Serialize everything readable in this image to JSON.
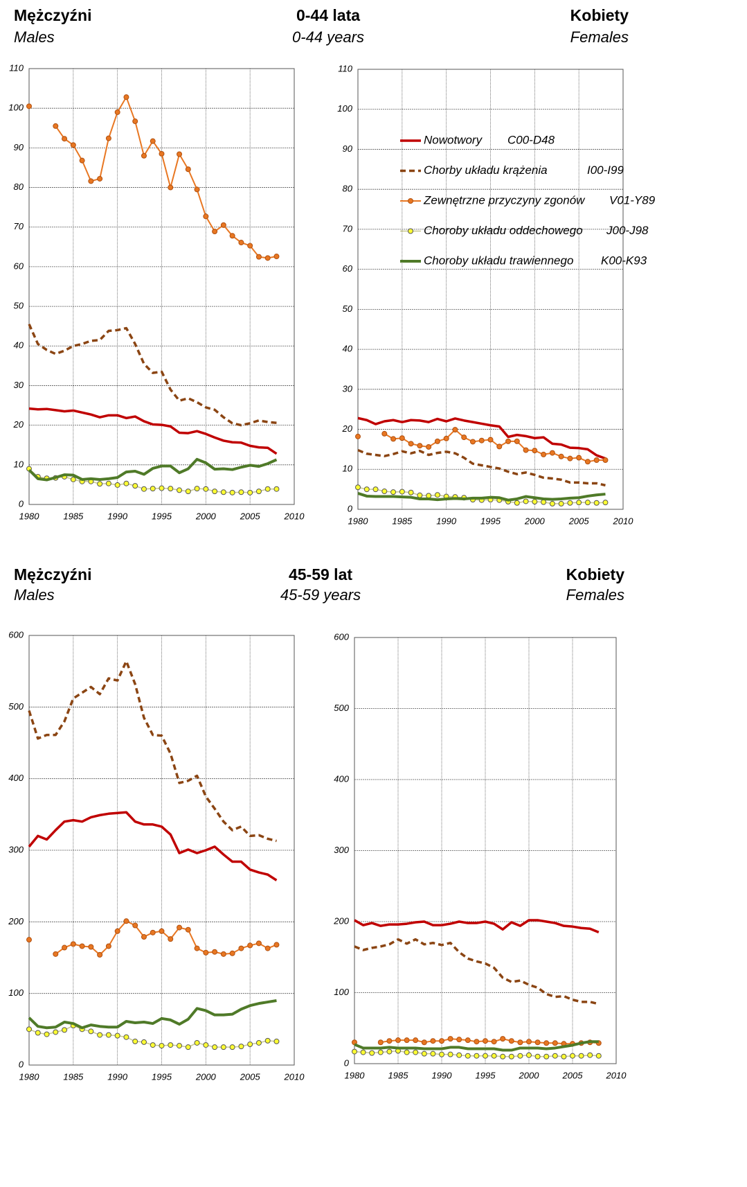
{
  "sections": [
    {
      "left_title": "Mężczyźni",
      "left_subtitle": "Males",
      "center_title": "0-44 lata",
      "center_subtitle": "0-44 years",
      "right_title": "Kobiety",
      "right_subtitle": "Females"
    },
    {
      "left_title": "Mężczyźni",
      "left_subtitle": "Males",
      "center_title": "45-59 lat",
      "center_subtitle": "45-59 years",
      "right_title": "Kobiety",
      "right_subtitle": "Females"
    }
  ],
  "chart_data": [
    {
      "type": "line",
      "grid": true,
      "x": [
        1980,
        1981,
        1982,
        1983,
        1984,
        1985,
        1986,
        1987,
        1988,
        1989,
        1990,
        1991,
        1992,
        1993,
        1994,
        1995,
        1996,
        1997,
        1998,
        1999,
        2000,
        2001,
        2002,
        2003,
        2004,
        2005,
        2006,
        2007,
        2008
      ],
      "xlim": [
        1980,
        2010
      ],
      "xticks": [
        1980,
        1985,
        1990,
        1995,
        2000,
        2005,
        2010
      ],
      "ylim": [
        0,
        110
      ],
      "yticks": [
        0,
        10,
        20,
        30,
        40,
        50,
        60,
        70,
        80,
        90,
        100,
        110
      ],
      "series": [
        {
          "color": "#c00000",
          "values": [
            24.2,
            24,
            24.1,
            23.8,
            23.5,
            23.7,
            23.2,
            22.7,
            22,
            22.5,
            22.5,
            21.8,
            22.2,
            21,
            20.2,
            20.1,
            19.7,
            18.1,
            18,
            18.5,
            17.8,
            16.9,
            16.1,
            15.7,
            15.6,
            14.8,
            14.4,
            14.3,
            12.8
          ]
        },
        {
          "color": "#8b4513",
          "dashed": true,
          "values": [
            45.5,
            40.5,
            39,
            38,
            38.8,
            40,
            40.5,
            41.3,
            41.5,
            43.8,
            44,
            44.5,
            40.5,
            35.5,
            33.2,
            33.5,
            29,
            26.2,
            26.8,
            25.8,
            24.5,
            23.9,
            22,
            20.5,
            20,
            20.5,
            21.2,
            20.8,
            20.6
          ]
        },
        {
          "color": "#e87722",
          "marker": true,
          "values": [
            100.5,
            null,
            null,
            95.5,
            92.3,
            90.7,
            86.8,
            81.6,
            82.2,
            92.4,
            99,
            102.8,
            96.7,
            88,
            91.7,
            88.5,
            80,
            88.4,
            84.6,
            79.5,
            72.7,
            68.9,
            70.5,
            67.8,
            66.1,
            65.3,
            62.5,
            62.2,
            62.6
          ]
        },
        {
          "color": "#ffff33",
          "marker": true,
          "values": [
            9,
            7,
            6.6,
            6.7,
            7,
            6.3,
            5.8,
            5.8,
            5.2,
            5.3,
            4.9,
            5.3,
            4.7,
            3.9,
            4,
            4.1,
            4,
            3.6,
            3.3,
            4,
            3.9,
            3.3,
            3.1,
            3,
            3.1,
            3,
            3.3,
            3.9,
            3.9
          ]
        },
        {
          "color": "#4f7a28",
          "values": [
            8.7,
            6.5,
            6.2,
            6.8,
            7.5,
            7.4,
            6.3,
            6.5,
            6.3,
            6.5,
            6.8,
            8.2,
            8.4,
            7.6,
            9.1,
            9.7,
            9.7,
            8,
            9,
            11.4,
            10.5,
            8.9,
            9,
            8.8,
            9.4,
            9.9,
            9.6,
            10.3,
            11.3
          ]
        }
      ]
    },
    {
      "type": "line",
      "grid": true,
      "legend": true,
      "x": [
        1980,
        1981,
        1982,
        1983,
        1984,
        1985,
        1986,
        1987,
        1988,
        1989,
        1990,
        1991,
        1992,
        1993,
        1994,
        1995,
        1996,
        1997,
        1998,
        1999,
        2000,
        2001,
        2002,
        2003,
        2004,
        2005,
        2006,
        2007,
        2008
      ],
      "xlim": [
        1980,
        2010
      ],
      "xticks": [
        1980,
        1985,
        1990,
        1995,
        2000,
        2005,
        2010
      ],
      "ylim": [
        0,
        110
      ],
      "yticks": [
        0,
        10,
        20,
        30,
        40,
        50,
        60,
        70,
        80,
        90,
        100,
        110
      ],
      "series": [
        {
          "name": "Nowotwory",
          "code": "C00-D48",
          "color": "#c00000",
          "values": [
            22.8,
            22.3,
            21.3,
            22,
            22.3,
            21.8,
            22.3,
            22.2,
            21.8,
            22.6,
            22,
            22.7,
            22.2,
            21.8,
            21.4,
            21,
            20.7,
            18.1,
            18.6,
            18.3,
            17.8,
            18,
            16.4,
            16.2,
            15.4,
            15.3,
            15,
            13.5,
            12.7
          ]
        },
        {
          "name": "Chorby układu krążenia",
          "code": "I00-I99",
          "color": "#8b4513",
          "dashed": true,
          "values": [
            14.8,
            13.9,
            13.6,
            13.3,
            13.8,
            14.5,
            14,
            14.6,
            13.6,
            14.1,
            14.4,
            14,
            12.9,
            11.4,
            11,
            10.6,
            10.2,
            9.4,
            8.8,
            9.2,
            8.6,
            7.9,
            7.7,
            7.4,
            6.7,
            6.7,
            6.5,
            6.5,
            6
          ]
        },
        {
          "name": "Zewnętrzne przyczyny zgonów",
          "code": "V01-Y89",
          "color": "#e87722",
          "marker": true,
          "values": [
            18.2,
            null,
            null,
            18.9,
            17.6,
            17.8,
            16.4,
            15.9,
            15.6,
            17,
            17.7,
            19.9,
            18,
            16.9,
            17.2,
            17.4,
            15.7,
            17,
            17,
            14.8,
            14.7,
            13.7,
            14.1,
            13.2,
            12.7,
            12.9,
            11.9,
            12.3,
            12.3
          ]
        },
        {
          "name": "Choroby układu oddechowego",
          "code": "J00-J98",
          "color": "#ffff33",
          "marker": true,
          "values": [
            5.5,
            5,
            5,
            4.5,
            4.3,
            4.4,
            4.2,
            3.5,
            3.4,
            3.6,
            3.2,
            3.1,
            2.9,
            2.4,
            2.3,
            2.4,
            2.3,
            1.9,
            1.6,
            2,
            1.9,
            1.8,
            1.4,
            1.4,
            1.6,
            1.7,
            1.7,
            1.6,
            1.7
          ]
        },
        {
          "name": "Choroby układu trawiennego",
          "code": "K00-K93",
          "color": "#4f7a28",
          "values": [
            4,
            3.3,
            3.2,
            3.2,
            3.2,
            3.1,
            3,
            2.6,
            2.6,
            2.4,
            2.6,
            2.7,
            2.6,
            2.8,
            2.8,
            3,
            2.9,
            2.3,
            2.6,
            3.2,
            2.9,
            2.6,
            2.5,
            2.6,
            2.8,
            2.9,
            3.3,
            3.6,
            3.8
          ]
        }
      ]
    },
    {
      "type": "line",
      "grid": true,
      "x": [
        1980,
        1981,
        1982,
        1983,
        1984,
        1985,
        1986,
        1987,
        1988,
        1989,
        1990,
        1991,
        1992,
        1993,
        1994,
        1995,
        1996,
        1997,
        1998,
        1999,
        2000,
        2001,
        2002,
        2003,
        2004,
        2005,
        2006,
        2007,
        2008
      ],
      "xlim": [
        1980,
        2010
      ],
      "xticks": [
        1980,
        1985,
        1990,
        1995,
        2000,
        2005,
        2010
      ],
      "ylim": [
        0,
        600
      ],
      "yticks": [
        0,
        100,
        200,
        300,
        400,
        500,
        600
      ],
      "series": [
        {
          "color": "#c00000",
          "values": [
            305,
            320,
            315,
            328,
            340,
            342,
            340,
            346,
            349,
            351,
            352,
            353,
            340,
            336,
            336,
            333,
            322,
            296,
            301,
            296,
            300,
            305,
            294,
            284,
            284,
            273,
            269,
            266,
            258
          ]
        },
        {
          "color": "#8b4513",
          "dashed": true,
          "values": [
            495,
            456,
            461,
            461,
            480,
            512,
            520,
            528,
            518,
            540,
            537,
            564,
            532,
            485,
            461,
            460,
            435,
            394,
            397,
            404,
            375,
            358,
            340,
            328,
            333,
            320,
            321,
            316,
            313
          ]
        },
        {
          "color": "#e87722",
          "marker": true,
          "values": [
            175,
            null,
            null,
            155,
            164,
            169,
            166,
            165,
            154,
            166,
            187,
            201,
            195,
            179,
            185,
            187,
            176,
            192,
            189,
            163,
            157,
            158,
            155,
            156,
            163,
            167,
            170,
            163,
            168
          ]
        },
        {
          "color": "#ffff33",
          "marker": true,
          "values": [
            50,
            45,
            43,
            46,
            49,
            55,
            50,
            47,
            42,
            42,
            41,
            39,
            33,
            32,
            28,
            27,
            28,
            27,
            25,
            31,
            28,
            25,
            25,
            25,
            26,
            29,
            31,
            34,
            33
          ]
        },
        {
          "color": "#4f7a28",
          "values": [
            66,
            54,
            52,
            53,
            60,
            58,
            52,
            56,
            54,
            53,
            53,
            61,
            59,
            60,
            58,
            65,
            63,
            57,
            64,
            79,
            76,
            70,
            70,
            71,
            78,
            83,
            86,
            88,
            90
          ]
        }
      ]
    },
    {
      "type": "line",
      "grid": true,
      "x": [
        1980,
        1981,
        1982,
        1983,
        1984,
        1985,
        1986,
        1987,
        1988,
        1989,
        1990,
        1991,
        1992,
        1993,
        1994,
        1995,
        1996,
        1997,
        1998,
        1999,
        2000,
        2001,
        2002,
        2003,
        2004,
        2005,
        2006,
        2007,
        2008
      ],
      "xlim": [
        1980,
        2010
      ],
      "xticks": [
        1980,
        1985,
        1990,
        1995,
        2000,
        2005,
        2010
      ],
      "ylim": [
        0,
        600
      ],
      "yticks": [
        0,
        100,
        200,
        300,
        400,
        500,
        600
      ],
      "series": [
        {
          "color": "#c00000",
          "values": [
            202,
            195,
            198,
            194,
            196,
            196,
            197,
            199,
            200,
            195,
            195,
            197,
            200,
            198,
            198,
            200,
            197,
            189,
            199,
            194,
            202,
            202,
            200,
            198,
            194,
            193,
            191,
            190,
            185
          ]
        },
        {
          "color": "#8b4513",
          "dashed": true,
          "values": [
            165,
            160,
            163,
            165,
            168,
            175,
            169,
            175,
            168,
            170,
            167,
            170,
            157,
            148,
            144,
            141,
            135,
            121,
            115,
            117,
            111,
            107,
            98,
            94,
            95,
            90,
            87,
            87,
            84
          ]
        },
        {
          "color": "#e87722",
          "marker": true,
          "values": [
            30,
            null,
            null,
            30,
            32,
            33,
            33,
            33,
            30,
            32,
            32,
            35,
            34,
            33,
            31,
            32,
            31,
            35,
            32,
            30,
            31,
            30,
            29,
            29,
            28,
            28,
            29,
            30,
            29
          ]
        },
        {
          "color": "#ffff33",
          "marker": true,
          "values": [
            17,
            16,
            15,
            16,
            17,
            18,
            16,
            16,
            14,
            14,
            13,
            13,
            12,
            11,
            11,
            11,
            11,
            10,
            10,
            11,
            12,
            10,
            10,
            11,
            10,
            11,
            11,
            12,
            11
          ]
        },
        {
          "color": "#4f7a28",
          "values": [
            27,
            22,
            22,
            22,
            23,
            22,
            22,
            22,
            21,
            21,
            21,
            23,
            23,
            21,
            21,
            21,
            21,
            19,
            19,
            22,
            22,
            22,
            21,
            22,
            24,
            26,
            29,
            31,
            31
          ]
        }
      ]
    }
  ]
}
